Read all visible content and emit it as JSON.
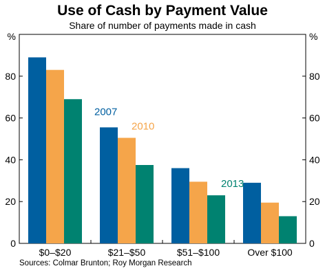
{
  "chart_data": {
    "type": "bar",
    "title": "Use of Cash by Payment Value",
    "subtitle": "Share of number of payments made in cash",
    "unit_left": "%",
    "unit_right": "%",
    "categories": [
      "$0–$20",
      "$21–$50",
      "$51–$100",
      "Over $100"
    ],
    "series": [
      {
        "name": "2007",
        "values": [
          89,
          55.5,
          36,
          29
        ],
        "color": "#005fa0"
      },
      {
        "name": "2010",
        "values": [
          83,
          50.5,
          29.5,
          19.5
        ],
        "color": "#f5a54a"
      },
      {
        "name": "2013",
        "values": [
          69,
          37.5,
          23,
          13
        ],
        "color": "#008270"
      }
    ],
    "ylim": [
      0,
      100
    ],
    "yticks": [
      0,
      20,
      40,
      60,
      80
    ],
    "xlabel": "",
    "ylabel": "",
    "grid": false,
    "legend": "inline labels above bars"
  },
  "source": "Sources: Colmar Brunton; Roy Morgan Research"
}
